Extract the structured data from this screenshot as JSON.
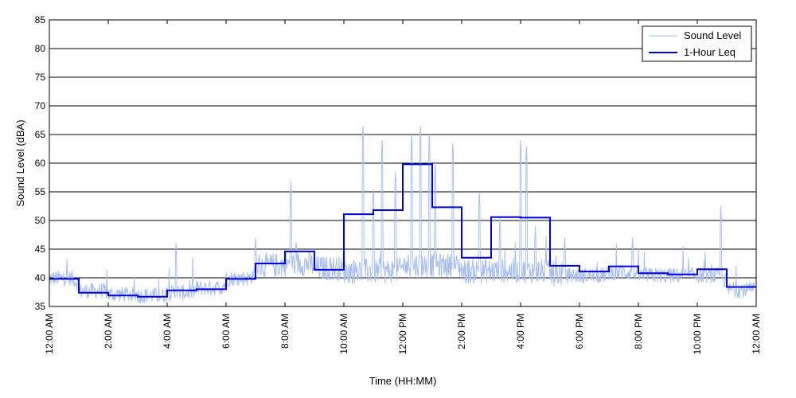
{
  "chart_data": {
    "type": "line",
    "title": "",
    "xlabel": "Time (HH:MM)",
    "ylabel": "Sound Level (dBA)",
    "xlim": [
      0,
      24
    ],
    "ylim": [
      35,
      85
    ],
    "yticks": [
      35,
      40,
      45,
      50,
      55,
      60,
      65,
      70,
      75,
      80,
      85
    ],
    "x_tick_hours": [
      0,
      2,
      4,
      6,
      8,
      10,
      12,
      14,
      16,
      18,
      20,
      22,
      24
    ],
    "x_tick_labels": [
      "12:00 AM",
      "2:00 AM",
      "4:00 AM",
      "6:00 AM",
      "8:00 AM",
      "10:00 AM",
      "12:00 PM",
      "2:00 PM",
      "4:00 PM",
      "6:00 PM",
      "8:00 PM",
      "10:00 PM",
      "12:00 AM"
    ],
    "grid": "horizontal",
    "legend_position": "top-right",
    "colors": {
      "sound_level": "#a9bfef",
      "leq": "#0000d8"
    },
    "series": [
      {
        "name": "Sound Level",
        "style": "thin-light-line",
        "hourly_baseline": [
          39.5,
          37.3,
          36.7,
          36.5,
          37.0,
          37.8,
          39.5,
          41.5,
          41.8,
          41.0,
          40.5,
          40.5,
          41.5,
          41.5,
          40.5,
          40.5,
          40.5,
          40.0,
          40.0,
          40.5,
          40.0,
          40.0,
          40.0,
          37.5
        ],
        "peaks": [
          {
            "x": 4.3,
            "y": 46.0
          },
          {
            "x": 7.0,
            "y": 47.0
          },
          {
            "x": 8.2,
            "y": 56.8
          },
          {
            "x": 10.65,
            "y": 66.5
          },
          {
            "x": 11.0,
            "y": 55.5
          },
          {
            "x": 11.3,
            "y": 64.0
          },
          {
            "x": 11.75,
            "y": 58.5
          },
          {
            "x": 12.3,
            "y": 65.0
          },
          {
            "x": 12.6,
            "y": 66.5
          },
          {
            "x": 12.9,
            "y": 65.0
          },
          {
            "x": 13.1,
            "y": 60.0
          },
          {
            "x": 13.7,
            "y": 63.5
          },
          {
            "x": 14.6,
            "y": 55.0
          },
          {
            "x": 15.3,
            "y": 50.5
          },
          {
            "x": 16.0,
            "y": 64.0
          },
          {
            "x": 16.2,
            "y": 63.0
          },
          {
            "x": 16.5,
            "y": 49.0
          },
          {
            "x": 17.5,
            "y": 47.0
          },
          {
            "x": 19.8,
            "y": 47.0
          },
          {
            "x": 22.8,
            "y": 52.5
          }
        ]
      },
      {
        "name": "1-Hour Leq",
        "style": "step",
        "x": [
          0,
          1,
          2,
          3,
          4,
          5,
          6,
          7,
          8,
          9,
          10,
          11,
          12,
          13,
          14,
          15,
          16,
          17,
          18,
          19,
          20,
          21,
          22,
          23
        ],
        "values": [
          39.8,
          37.4,
          36.9,
          36.7,
          37.8,
          38.0,
          39.8,
          42.5,
          44.6,
          41.4,
          51.1,
          51.8,
          59.8,
          52.3,
          43.5,
          50.6,
          50.5,
          42.1,
          41.1,
          42.0,
          40.8,
          40.6,
          41.5,
          38.4
        ]
      }
    ]
  }
}
